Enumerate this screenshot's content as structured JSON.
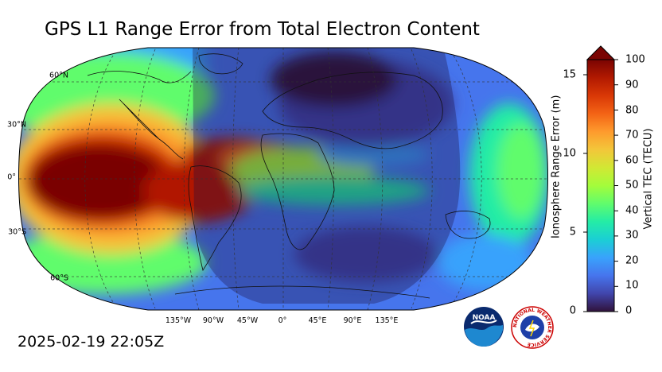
{
  "title": "GPS L1 Range Error from Total Electron Content",
  "timestamp": "2025-02-19 22:05Z",
  "map": {
    "projection": "Robinson",
    "lat_labels": [
      "60°N",
      "30°N",
      "0°",
      "30°S",
      "60°S"
    ],
    "lon_labels": [
      "135°W",
      "90°W",
      "45°W",
      "0°",
      "45°E",
      "90°E",
      "135°E"
    ],
    "night_shading": true
  },
  "colorbar": {
    "left_label": "Ionosphere Range Error (m)",
    "left_ticks": [
      "15",
      "10",
      "5",
      "0"
    ],
    "right_label": "Vertical TEC (TECU)",
    "right_ticks": [
      "100",
      "90",
      "80",
      "70",
      "60",
      "50",
      "40",
      "30",
      "20",
      "10",
      "0"
    ],
    "colormap_stops": [
      "#30123b",
      "#4145ab",
      "#4675ed",
      "#39a2fc",
      "#1bcfd4",
      "#24eca6",
      "#61fc6c",
      "#a4fc3b",
      "#d1e834",
      "#f3c63a",
      "#fe9b2d",
      "#f36315",
      "#d93806",
      "#b11901",
      "#7a0402"
    ],
    "extend_max_color": "#7a0402"
  },
  "logos": [
    {
      "name": "noaa-logo",
      "text": "NOAA"
    },
    {
      "name": "nws-logo",
      "text": "NATIONAL WEATHER SERVICE"
    }
  ]
}
